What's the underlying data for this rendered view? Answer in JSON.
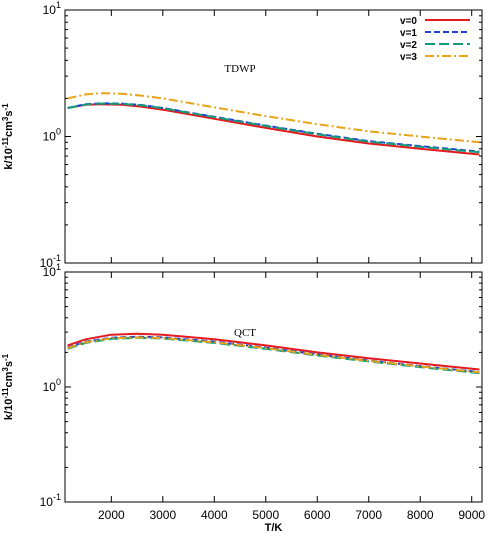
{
  "chart_data": [
    {
      "type": "line",
      "title": "TDWP",
      "ylabel": "k/10^-11cm^3s^-1",
      "xlabel": "",
      "xlim": [
        1100,
        9200
      ],
      "ylim": [
        0.1,
        10
      ],
      "yscale": "log",
      "xticks": [
        2000,
        3000,
        4000,
        5000,
        6000,
        7000,
        8000,
        9000
      ],
      "xtick_labels": [
        "",
        "",
        "",
        "",
        "",
        "",
        "",
        ""
      ],
      "yticks": [
        {
          "value": 0.1,
          "base": "10",
          "exp": "-1"
        },
        {
          "value": 1,
          "base": "10",
          "exp": "0"
        },
        {
          "value": 10,
          "base": "10",
          "exp": "1"
        }
      ],
      "legend_position": "top-right",
      "x": [
        1150,
        1500,
        1800,
        2200,
        2600,
        3000,
        4000,
        5000,
        6000,
        7000,
        8000,
        9150
      ],
      "series": [
        {
          "name": "v=0",
          "color": "#e41a1c",
          "dash": "solid",
          "values": [
            1.68,
            1.78,
            1.8,
            1.78,
            1.72,
            1.63,
            1.38,
            1.17,
            1.0,
            0.88,
            0.8,
            0.72
          ]
        },
        {
          "name": "v=1",
          "color": "#1f3fd8",
          "dash": "short",
          "values": [
            1.68,
            1.8,
            1.83,
            1.82,
            1.77,
            1.68,
            1.43,
            1.22,
            1.05,
            0.92,
            0.84,
            0.76
          ]
        },
        {
          "name": "v=2",
          "color": "#139b7a",
          "dash": "long",
          "values": [
            1.68,
            1.79,
            1.82,
            1.81,
            1.76,
            1.67,
            1.42,
            1.21,
            1.04,
            0.91,
            0.83,
            0.75
          ]
        },
        {
          "name": "v=3",
          "color": "#e8a317",
          "dash": "dashdot",
          "values": [
            2.0,
            2.15,
            2.2,
            2.18,
            2.1,
            2.0,
            1.7,
            1.45,
            1.25,
            1.1,
            1.0,
            0.9
          ]
        }
      ]
    },
    {
      "type": "line",
      "title": "QCT",
      "ylabel": "k/10^-11cm^3s^-1",
      "xlabel": "T/K",
      "xlim": [
        1100,
        9200
      ],
      "ylim": [
        0.1,
        10
      ],
      "yscale": "log",
      "xticks": [
        2000,
        3000,
        4000,
        5000,
        6000,
        7000,
        8000,
        9000
      ],
      "xtick_labels": [
        "2000",
        "3000",
        "4000",
        "5000",
        "6000",
        "7000",
        "8000",
        "9000"
      ],
      "yticks": [
        {
          "value": 0.1,
          "base": "10",
          "exp": "-1"
        },
        {
          "value": 1,
          "base": "10",
          "exp": "0"
        },
        {
          "value": 10,
          "base": "10",
          "exp": "1"
        }
      ],
      "x": [
        1150,
        1500,
        2000,
        2500,
        3000,
        4000,
        5000,
        6000,
        7000,
        8000,
        9150
      ],
      "series": [
        {
          "name": "v=0",
          "color": "#e41a1c",
          "dash": "solid",
          "values": [
            2.3,
            2.6,
            2.85,
            2.9,
            2.85,
            2.6,
            2.3,
            2.0,
            1.78,
            1.6,
            1.42
          ]
        },
        {
          "name": "v=1",
          "color": "#1f3fd8",
          "dash": "short",
          "values": [
            2.2,
            2.48,
            2.68,
            2.74,
            2.7,
            2.48,
            2.2,
            1.92,
            1.7,
            1.52,
            1.35
          ]
        },
        {
          "name": "v=2",
          "color": "#139b7a",
          "dash": "long",
          "values": [
            2.15,
            2.42,
            2.62,
            2.68,
            2.64,
            2.42,
            2.15,
            1.88,
            1.67,
            1.49,
            1.32
          ]
        },
        {
          "name": "v=3",
          "color": "#e8a317",
          "dash": "dashdot",
          "values": [
            2.18,
            2.45,
            2.65,
            2.7,
            2.66,
            2.45,
            2.18,
            1.9,
            1.69,
            1.51,
            1.34
          ]
        }
      ]
    }
  ]
}
